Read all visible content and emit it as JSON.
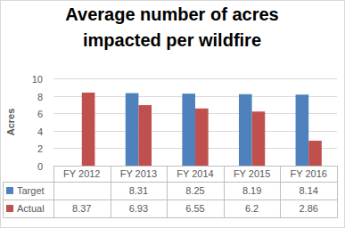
{
  "chart_data": {
    "type": "bar",
    "title": "Average number of acres impacted per wildfire",
    "y_label": "Acres",
    "categories": [
      "FY 2012",
      "FY 2013",
      "FY 2014",
      "FY 2015",
      "FY 2016"
    ],
    "series": [
      {
        "name": "Target",
        "color": "#4f81bd",
        "values": [
          null,
          8.31,
          8.25,
          8.19,
          8.14
        ]
      },
      {
        "name": "Actual",
        "color": "#c0504d",
        "values": [
          8.37,
          6.93,
          6.55,
          6.2,
          2.86
        ]
      }
    ],
    "ylim": [
      0,
      10
    ],
    "yticks": [
      0,
      2,
      4,
      6,
      8,
      10
    ],
    "grid": true,
    "legend": "bottom"
  }
}
